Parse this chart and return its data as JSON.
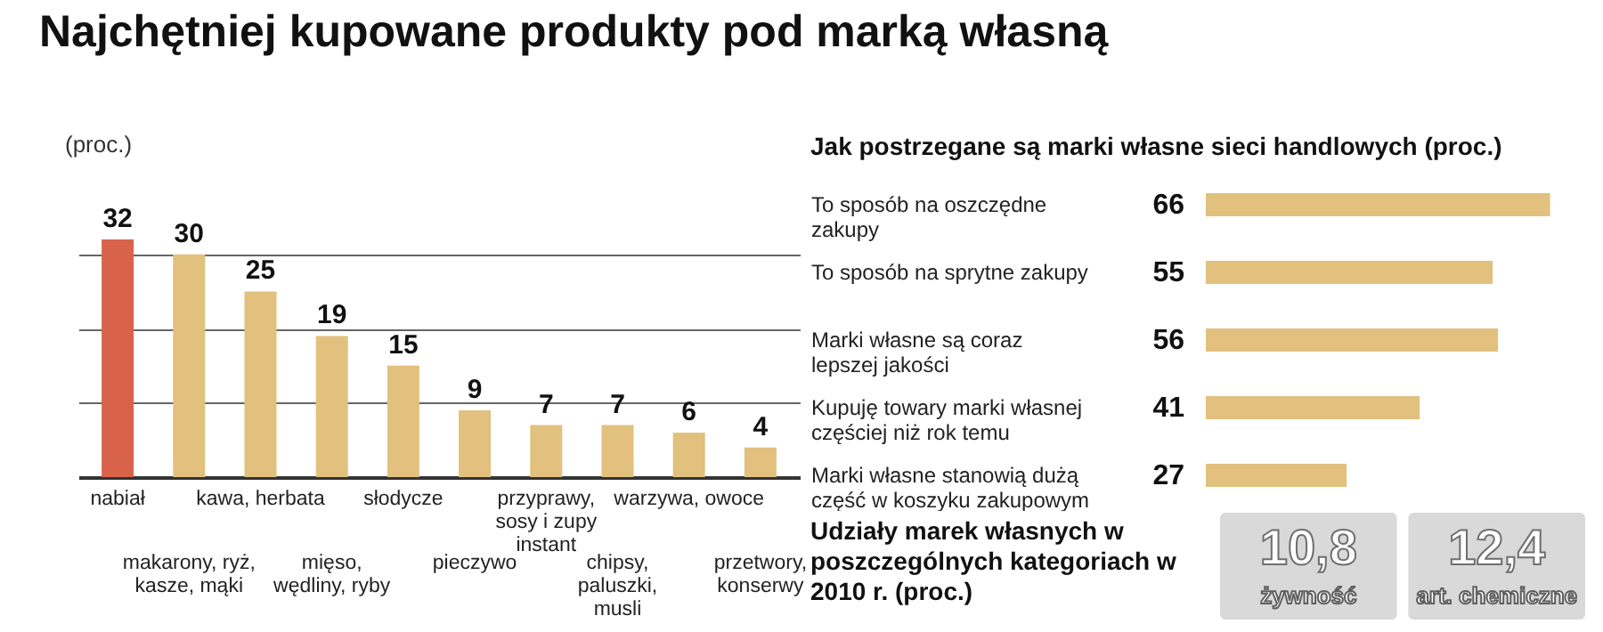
{
  "chart_data": [
    {
      "type": "bar",
      "title": "Najchętniej kupowane produkty pod marką własną",
      "ylabel": "(proc.)",
      "categories": [
        "nabiał",
        "makarony, ryż, kasze, mąki",
        "kawa, herbata",
        "mięso, wędliny, ryby",
        "słodycze",
        "pieczywo",
        "przyprawy, sosy i zupy instant",
        "chipsy, paluszki, musli",
        "warzywa, owoce",
        "przetwory, konserwy"
      ],
      "values": [
        32,
        30,
        25,
        19,
        15,
        9,
        7,
        7,
        6,
        4
      ],
      "colors": [
        "#d9634a",
        "#e2c07e",
        "#e2c07e",
        "#e2c07e",
        "#e2c07e",
        "#e2c07e",
        "#e2c07e",
        "#e2c07e",
        "#e2c07e",
        "#e2c07e"
      ],
      "grid": "y",
      "tick_labels": "x",
      "data_labels": true
    },
    {
      "type": "bar",
      "orientation": "horizontal",
      "title": "Jak postrzegane są marki własne sieci handlowych (proc.)",
      "categories": [
        "To sposób na oszczędne zakupy",
        "To sposób na sprytne zakupy",
        "Marki własne są coraz lepszej jakości",
        "Kupuję towary marki własnej częściej niż rok temu",
        "Marki własne stanowią dużą część w koszyku zakupowym"
      ],
      "values": [
        66,
        55,
        56,
        41,
        27
      ],
      "color": "#e2c07e",
      "data_labels": true
    },
    {
      "type": "other",
      "title": "Udziały marek własnych w poszczególnych kategoriach w 2010 r. (proc.)",
      "categories": [
        "żywność",
        "art. chemiczne"
      ],
      "value_labels": [
        "10,8",
        "12,4"
      ],
      "colors": [
        "#d9d9d9",
        "#d9d9d9"
      ]
    }
  ]
}
